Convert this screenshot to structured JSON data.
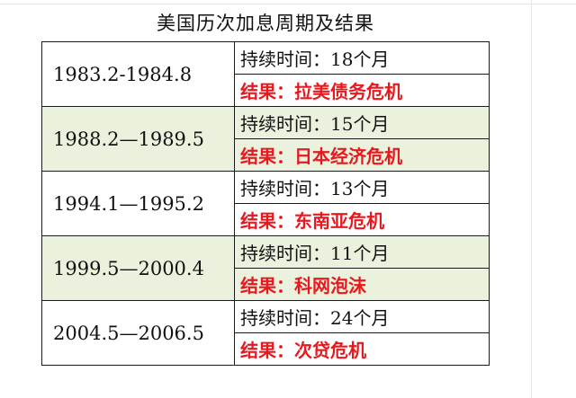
{
  "title": "美国历次加息周期及结果",
  "colors": {
    "result_text": "#e8191e",
    "shaded_row": "#eaf1dd",
    "border": "#1a1a1a"
  },
  "rows": [
    {
      "period": "1983.2-1984.8",
      "duration_label": "持续时间：",
      "duration_value": "18个月",
      "result": "结果：拉美债务危机"
    },
    {
      "period": "1988.2—1989.5",
      "duration_label": "持续时间：",
      "duration_value": "15个月",
      "result": "结果：日本经济危机"
    },
    {
      "period": "1994.1—1995.2",
      "duration_label": "持续时间：",
      "duration_value": "13个月",
      "result": "结果：东南亚危机"
    },
    {
      "period": "1999.5—2000.4",
      "duration_label": "持续时间：",
      "duration_value": "11个月",
      "result": "结果：科网泡沫"
    },
    {
      "period": "2004.5—2006.5",
      "duration_label": "持续时间：",
      "duration_value": "24个月",
      "result": "结果：次贷危机"
    }
  ]
}
